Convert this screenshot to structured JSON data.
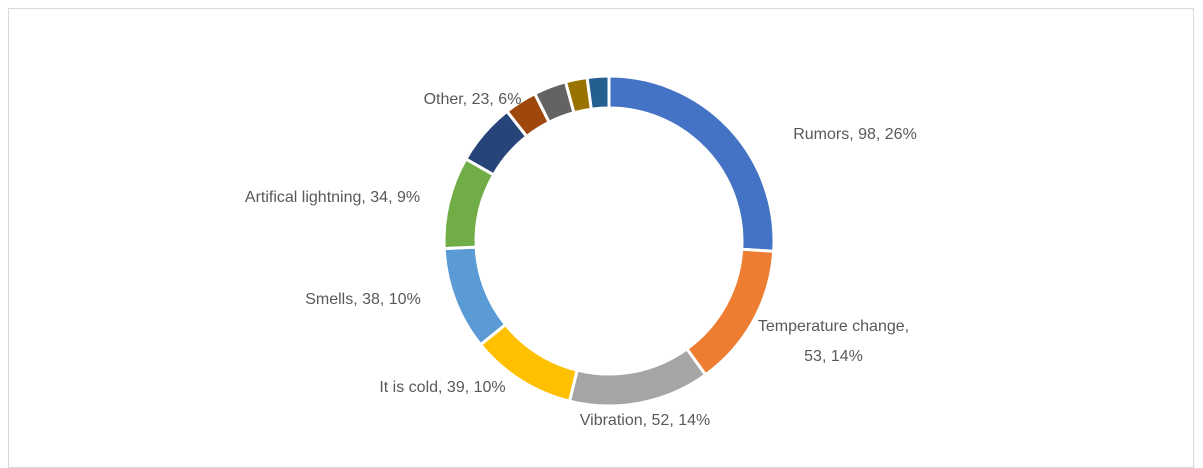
{
  "chart_data": {
    "type": "donut",
    "categories": [
      "Rumors",
      "Temperature change",
      "Vibration",
      "It is cold",
      "Smells",
      "Artifical lightning",
      "Other",
      null,
      null,
      null,
      null
    ],
    "values": [
      98,
      53,
      52,
      39,
      38,
      34,
      23,
      12,
      12,
      8,
      8
    ],
    "value_labels": [
      "Rumors, 98, 26%",
      "Temperature change, 53, 14%",
      "Vibration, 52, 14%",
      "It is cold, 39, 10%",
      "Smells, 38, 10%",
      "Artifical lightning, 34, 9%",
      "Other, 23, 6%",
      null,
      null,
      null,
      null
    ],
    "colors": [
      "#4472c4",
      "#ed7d31",
      "#a5a5a5",
      "#ffc000",
      "#5b9bd5",
      "#70ad47",
      "#264478",
      "#9e480e",
      "#636363",
      "#997300",
      "#255e91"
    ]
  }
}
